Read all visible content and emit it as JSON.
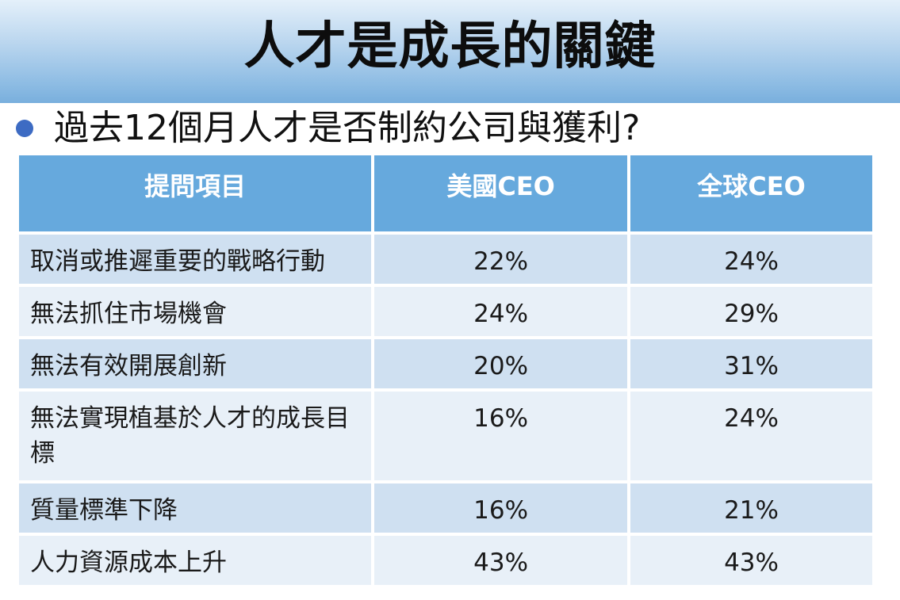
{
  "title": "人才是成長的關鍵",
  "subtitle": "過去12個月人才是否制約公司與獲利?",
  "table": {
    "headers": [
      "提問項目",
      "美國CEO",
      "全球CEO"
    ],
    "rows": [
      {
        "item": "取消或推遲重要的戰略行動",
        "us": "22%",
        "global": "24%"
      },
      {
        "item": "無法抓住市場機會",
        "us": "24%",
        "global": "29%"
      },
      {
        "item": "無法有效開展創新",
        "us": "20%",
        "global": "31%"
      },
      {
        "item": "無法實現植基於人才的成長目標",
        "us": "16%",
        "global": "24%"
      },
      {
        "item": "質量標準下降",
        "us": "16%",
        "global": "21%"
      },
      {
        "item": "人力資源成本上升",
        "us": "43%",
        "global": "43%"
      }
    ]
  },
  "colors": {
    "header_bg": "#66a9dd",
    "row_odd_bg": "#cfe0f1",
    "row_even_bg": "#e8f0f8",
    "bullet": "#3d6bc3"
  }
}
